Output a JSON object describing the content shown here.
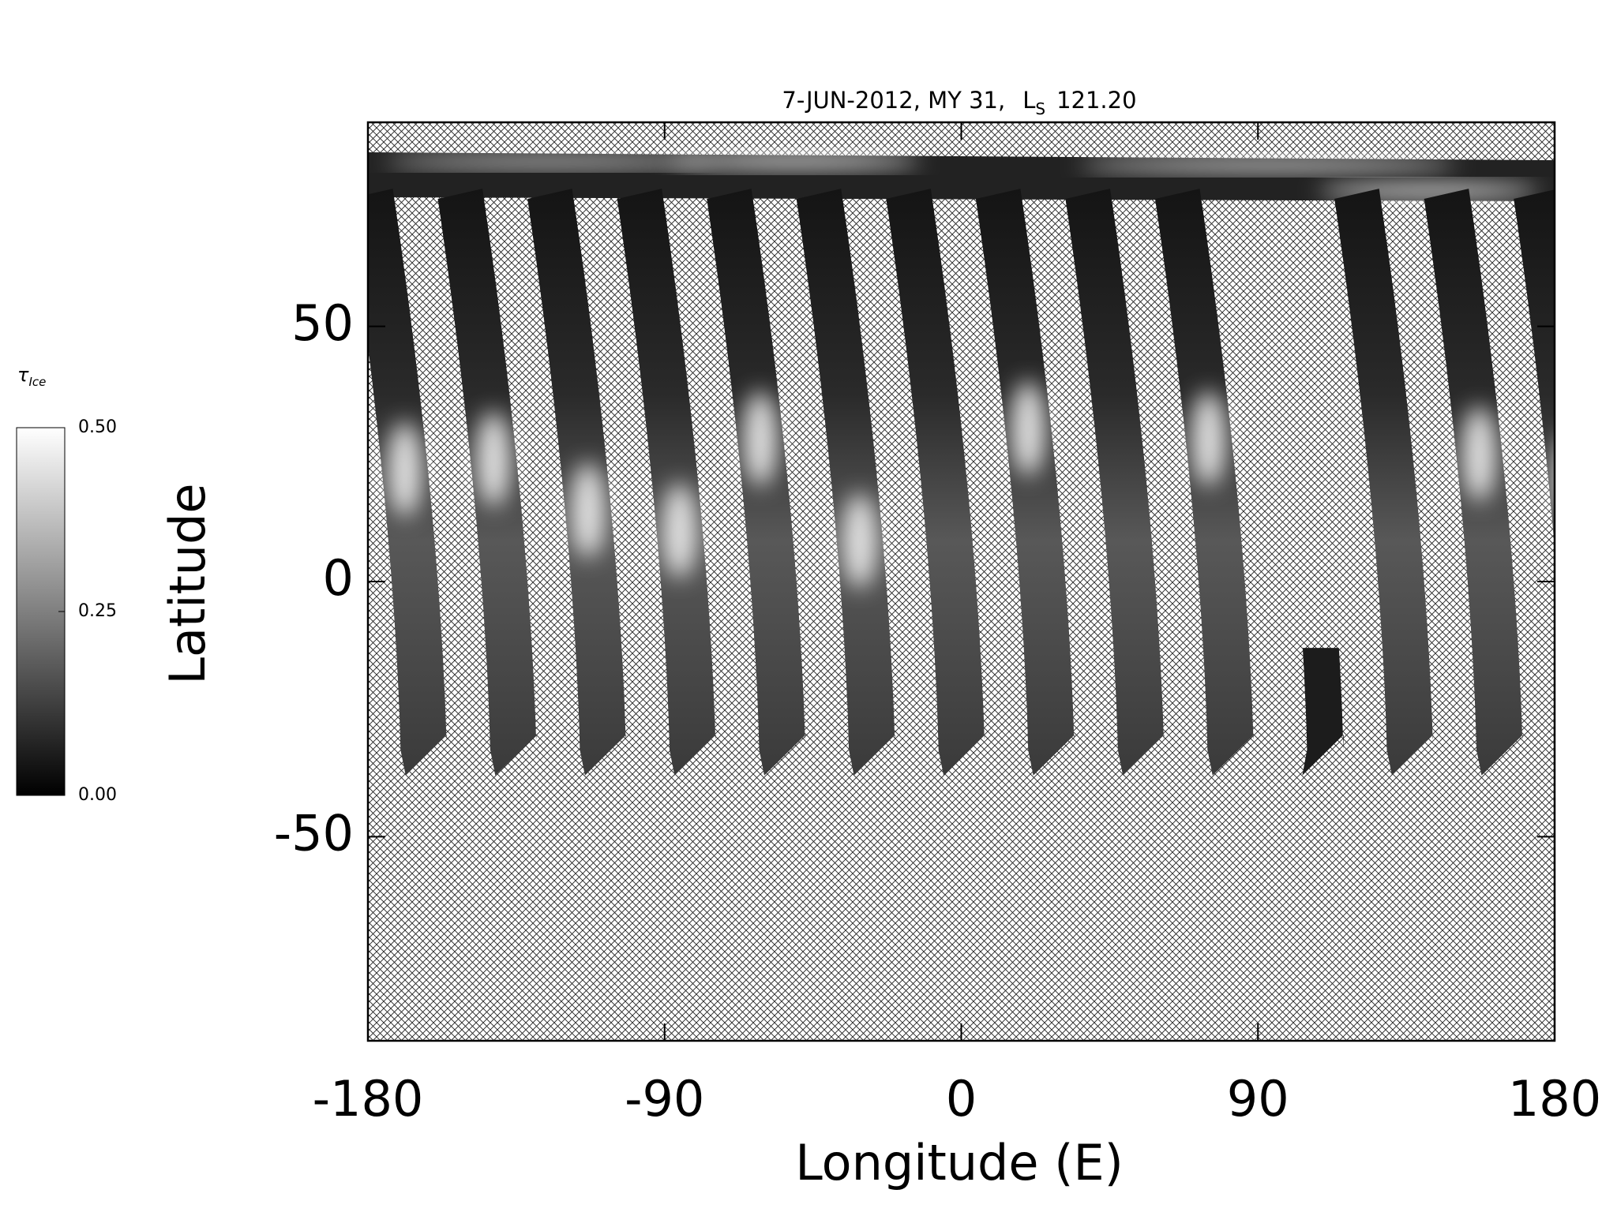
{
  "chart_data": {
    "type": "map",
    "title": "7-JUN-2012, MY 31,",
    "title_symbol": "L",
    "title_symbol_sub": "S",
    "title_value": "121.20",
    "xlabel": "Longitude (E)",
    "ylabel": "Latitude",
    "xlim": [
      -180,
      180
    ],
    "xticks": [
      -180,
      -90,
      0,
      90,
      180
    ],
    "ylim": [
      -90,
      90
    ],
    "yticks": [
      -50,
      0,
      50
    ],
    "colorbar": {
      "label": "τ",
      "label_sub": "Ice",
      "clim": [
        0,
        0.5
      ],
      "ticks": [
        {
          "value": 0,
          "label": "0.00"
        },
        {
          "value": 0.25,
          "label": "0.25"
        },
        {
          "value": 0.5,
          "label": "0.50"
        }
      ],
      "colors": [
        "#000000",
        "#ffffff"
      ]
    }
  }
}
